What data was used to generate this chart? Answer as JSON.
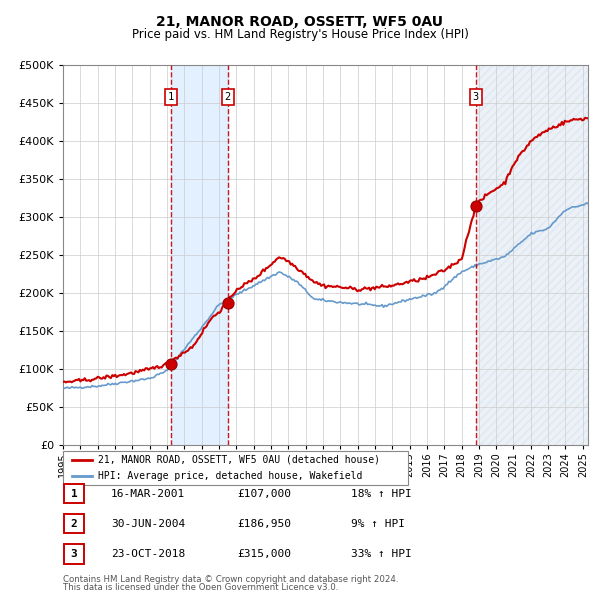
{
  "title": "21, MANOR ROAD, OSSETT, WF5 0AU",
  "subtitle": "Price paid vs. HM Land Registry's House Price Index (HPI)",
  "footer_line1": "Contains HM Land Registry data © Crown copyright and database right 2024.",
  "footer_line2": "This data is licensed under the Open Government Licence v3.0.",
  "legend_label_red": "21, MANOR ROAD, OSSETT, WF5 0AU (detached house)",
  "legend_label_blue": "HPI: Average price, detached house, Wakefield",
  "transactions": [
    {
      "num": 1,
      "date": "16-MAR-2001",
      "price": 107000,
      "pct": "18%",
      "direction": "↑",
      "ref": "HPI",
      "year": 2001.21
    },
    {
      "num": 2,
      "date": "30-JUN-2004",
      "price": 186950,
      "pct": "9%",
      "direction": "↑",
      "ref": "HPI",
      "year": 2004.5
    },
    {
      "num": 3,
      "date": "23-OCT-2018",
      "price": 315000,
      "pct": "33%",
      "direction": "↑",
      "ref": "HPI",
      "year": 2018.81
    }
  ],
  "red_line_color": "#cc0000",
  "blue_line_color": "#6699cc",
  "dot_color": "#cc0000",
  "vline_color": "#cc0000",
  "shade_color": "#ddeeff",
  "hatch_color": "#aabbcc",
  "grid_color": "#cccccc",
  "ylim": [
    0,
    500000
  ],
  "yticks": [
    0,
    50000,
    100000,
    150000,
    200000,
    250000,
    300000,
    350000,
    400000,
    450000,
    500000
  ],
  "xlim_start": 1995.0,
  "xlim_end": 2025.3
}
